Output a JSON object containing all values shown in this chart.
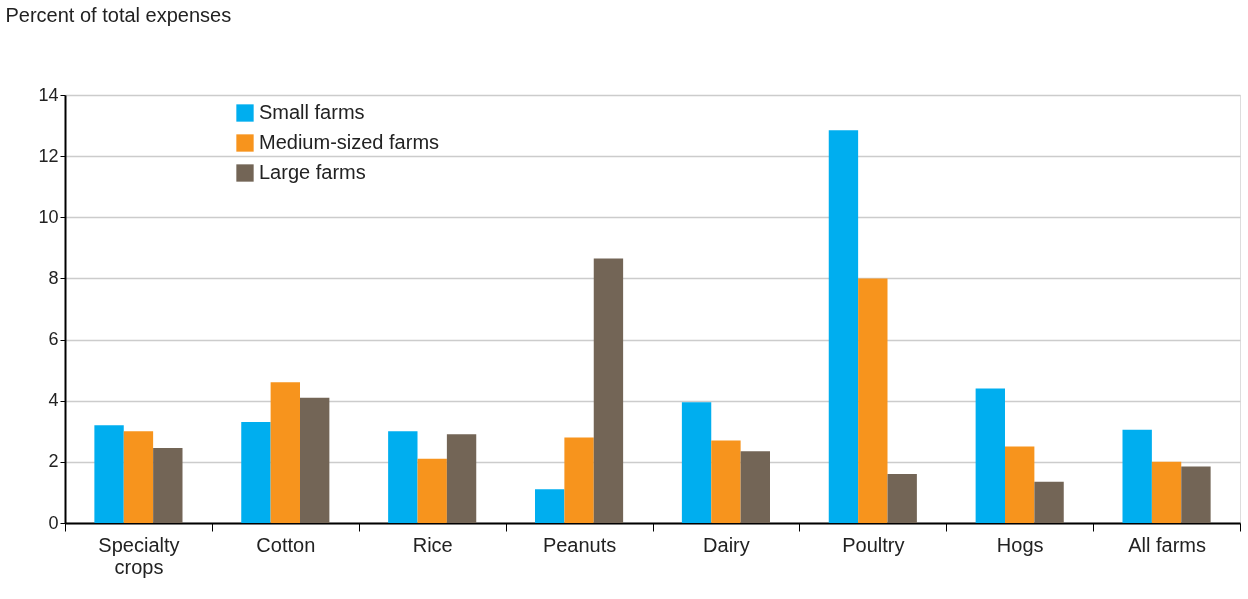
{
  "chart_data": {
    "type": "bar",
    "ylabel": "Percent of total expenses",
    "categories": [
      "Specialty crops",
      "Cotton",
      "Rice",
      "Peanuts",
      "Dairy",
      "Poultry",
      "Hogs",
      "All farms"
    ],
    "series": [
      {
        "name": "Small farms",
        "color": "#00aeef",
        "values": [
          3.2,
          3.3,
          3.0,
          1.1,
          3.95,
          12.85,
          4.4,
          3.05
        ]
      },
      {
        "name": "Medium-sized farms",
        "color": "#f7941d",
        "values": [
          3.0,
          4.6,
          2.1,
          2.8,
          2.7,
          8.0,
          2.5,
          2.0
        ]
      },
      {
        "name": "Large farms",
        "color": "#736556",
        "values": [
          2.45,
          4.1,
          2.9,
          8.65,
          2.35,
          1.6,
          1.35,
          1.85
        ]
      }
    ],
    "ylim": [
      0,
      14
    ],
    "yticks": [
      0,
      2,
      4,
      6,
      8,
      10,
      12,
      14
    ],
    "grid": "y",
    "legend": "top left"
  }
}
